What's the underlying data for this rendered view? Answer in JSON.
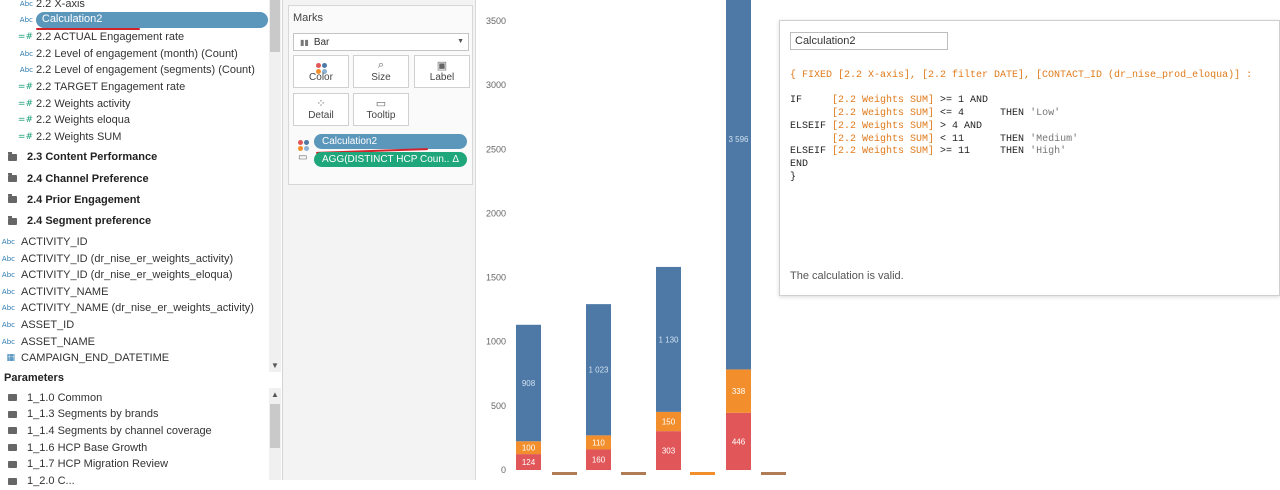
{
  "data_pane": {
    "fields": [
      {
        "icon": "Abc",
        "kind": "dim",
        "label": "2.2 X-axis"
      },
      {
        "icon": "Abc",
        "kind": "dim",
        "label": "Calculation2",
        "selected": true
      },
      {
        "icon": "=#",
        "kind": "meas",
        "label": "2.2 ACTUAL Engagement rate"
      },
      {
        "icon": "Abc",
        "kind": "dim",
        "label": "2.2 Level of engagement (month) (Count)"
      },
      {
        "icon": "Abc",
        "kind": "dim",
        "label": "2.2 Level of engagement (segments) (Count)"
      },
      {
        "icon": "=#",
        "kind": "meas",
        "label": "2.2 TARGET Engagement rate"
      },
      {
        "icon": "=#",
        "kind": "meas",
        "label": "2.2 Weights activity"
      },
      {
        "icon": "=#",
        "kind": "meas",
        "label": "2.2 Weights eloqua"
      },
      {
        "icon": "=#",
        "kind": "meas",
        "label": "2.2 Weights SUM"
      }
    ],
    "folders": [
      "2.3 Content Performance",
      "2.4 Channel Preference",
      "2.4 Prior Engagement",
      "2.4 Segment preference"
    ],
    "fields2": [
      {
        "icon": "Abc",
        "label": "ACTIVITY_ID"
      },
      {
        "icon": "Abc",
        "label": "ACTIVITY_ID (dr_nise_er_weights_activity)"
      },
      {
        "icon": "Abc",
        "label": "ACTIVITY_ID (dr_nise_er_weights_eloqua)"
      },
      {
        "icon": "Abc",
        "label": "ACTIVITY_NAME"
      },
      {
        "icon": "Abc",
        "label": "ACTIVITY_NAME (dr_nise_er_weights_activity)"
      },
      {
        "icon": "Abc",
        "label": "ASSET_ID"
      },
      {
        "icon": "Abc",
        "label": "ASSET_NAME"
      },
      {
        "icon": "date",
        "label": "CAMPAIGN_END_DATETIME"
      }
    ],
    "parameters_title": "Parameters",
    "parameters": [
      "1_1.0 Common",
      "1_1.3 Segments by brands",
      "1_1.4 Segments by channel coverage",
      "1_1.6 HCP Base Growth",
      "1_1.7 HCP Migration Review",
      "1_2.0 C..."
    ]
  },
  "marks": {
    "title": "Marks",
    "mark_type": "Bar",
    "buttons": {
      "color": "Color",
      "size": "Size",
      "label": "Label",
      "detail": "Detail",
      "tooltip": "Tooltip"
    },
    "pills": {
      "color_field": "Calculation2",
      "tooltip_field": "AGG(DISTINCT HCP Coun..",
      "tooltip_warn": "Δ"
    },
    "colors": {
      "pill_blue": "#5b96bb",
      "pill_green": "#1fa67a"
    }
  },
  "chart_data": {
    "type": "bar",
    "stacked": true,
    "yticks": [
      "0",
      "500",
      "1000",
      "1500",
      "2000",
      "2500",
      "3000",
      "3500"
    ],
    "ylim": [
      0,
      3600
    ],
    "groups": [
      {
        "segments": [
          {
            "value": 124,
            "label": "124",
            "color": "#e15759"
          },
          {
            "value": 100,
            "label": "100",
            "color": "#f28e2b"
          },
          {
            "value": 908,
            "label": "908",
            "color": "#4e79a7"
          }
        ]
      },
      {
        "segments": [
          {
            "value": 15,
            "label": "",
            "color": "#b07c55"
          }
        ]
      },
      {
        "segments": [
          {
            "value": 160,
            "label": "160",
            "color": "#e15759"
          },
          {
            "value": 110,
            "label": "110",
            "color": "#f28e2b"
          },
          {
            "value": 1023,
            "label": "1 023",
            "color": "#4e79a7"
          }
        ]
      },
      {
        "segments": [
          {
            "value": 15,
            "label": "",
            "color": "#b07c55"
          }
        ]
      },
      {
        "segments": [
          {
            "value": 303,
            "label": "303",
            "color": "#e15759"
          },
          {
            "value": 150,
            "label": "150",
            "color": "#f28e2b"
          },
          {
            "value": 1130,
            "label": "1 130",
            "color": "#4e79a7"
          }
        ]
      },
      {
        "segments": [
          {
            "value": 12,
            "label": "",
            "color": "#f28e2b"
          }
        ]
      },
      {
        "segments": [
          {
            "value": 446,
            "label": "446",
            "color": "#e15759"
          },
          {
            "value": 338,
            "label": "338",
            "color": "#f28e2b"
          },
          {
            "value": 3596,
            "label": "3 596",
            "color": "#4e79a7"
          }
        ]
      },
      {
        "segments": [
          {
            "value": 18,
            "label": "",
            "color": "#b07c55"
          }
        ]
      }
    ]
  },
  "calc": {
    "name": "Calculation2",
    "lines": [
      "{ FIXED [2.2 X-axis], [2.2 filter DATE], [CONTACT_ID (dr_nise_prod_eloqua)] :",
      "",
      "IF     [2.2 Weights SUM] >= 1 AND",
      "       [2.2 Weights SUM] <= 4      THEN 'Low'",
      "ELSEIF [2.2 Weights SUM] > 4 AND",
      "       [2.2 Weights SUM] < 11      THEN 'Medium'",
      "ELSEIF [2.2 Weights SUM] >= 11     THEN 'High'",
      "END",
      "}"
    ],
    "status": "The calculation is valid."
  }
}
